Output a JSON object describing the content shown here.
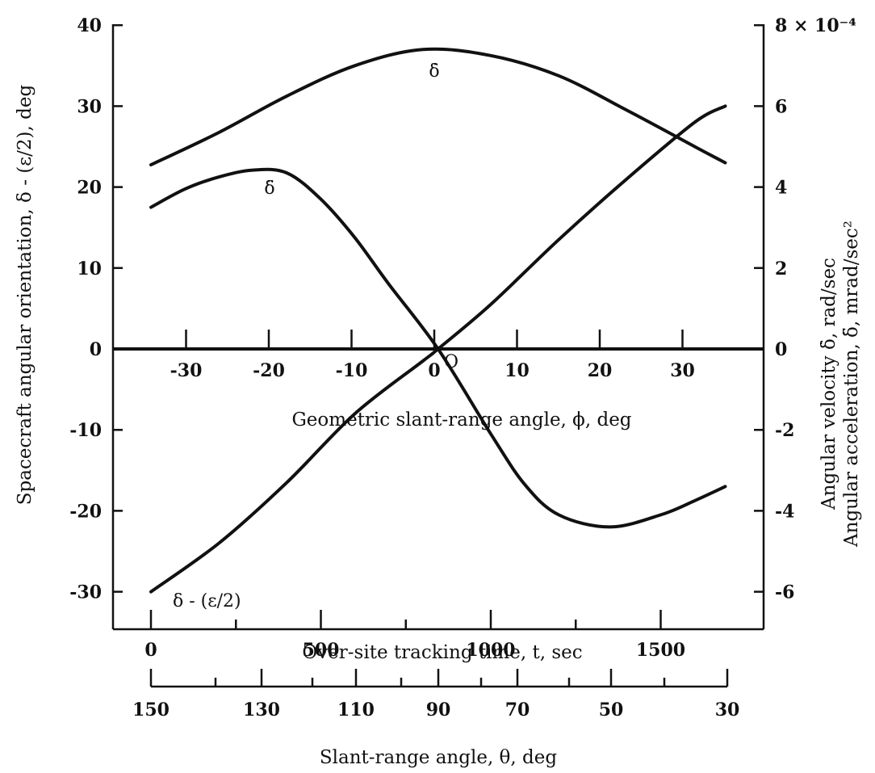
{
  "chart_data": {
    "type": "line",
    "left_axis": {
      "label": "Spacecraft angular orientation, δ - (ε/2), deg",
      "ticks": [
        -30,
        -20,
        -10,
        0,
        10,
        20,
        30,
        40
      ],
      "range": [
        -35,
        40
      ]
    },
    "right_axis": {
      "label_line1": "Angular velocity δ̇, rad/sec",
      "label_line2": "Angular acceleration, δ̈, mrad/sec²",
      "ticks": [
        "-6",
        "-4",
        "-2",
        "0",
        "2",
        "4",
        "6",
        "8 × 10⁻⁴"
      ],
      "tick_values": [
        -6,
        -4,
        -2,
        0,
        2,
        4,
        6,
        8
      ],
      "range": [
        -7,
        8
      ]
    },
    "phi_axis": {
      "label": "Geometric slant-range angle, ϕ, deg",
      "ticks": [
        "-30",
        "-20",
        "-10",
        "0",
        "10",
        "20",
        "30"
      ],
      "tick_values": [
        -30,
        -20,
        -10,
        0,
        10,
        20,
        30
      ]
    },
    "time_axis": {
      "label": "Over-site tracking time, t, sec",
      "ticks": [
        "0",
        "500",
        "1000",
        "1500"
      ],
      "tick_values": [
        0,
        500,
        1000,
        1500
      ]
    },
    "theta_axis": {
      "label": "Slant-range angle, θ, deg",
      "ticks": [
        "150",
        "130",
        "110",
        "90",
        "70",
        "50",
        "30"
      ]
    },
    "series": [
      {
        "name": "δ - (ε/2)",
        "axis": "left",
        "x_time": [
          0,
          200,
          400,
          600,
          800,
          845,
          1000,
          1200,
          1400,
          1600,
          1690
        ],
        "y": [
          -30,
          -24,
          -16.5,
          -8,
          -1.5,
          0,
          5.5,
          13.5,
          21,
          28,
          30
        ]
      },
      {
        "name": "δ̇",
        "axis": "right",
        "x_time": [
          0,
          200,
          400,
          600,
          800,
          1000,
          1200,
          1400,
          1600,
          1690
        ],
        "y": [
          4.55,
          5.35,
          6.25,
          7.0,
          7.4,
          7.25,
          6.75,
          5.9,
          5.0,
          4.6
        ]
      },
      {
        "name": "δ̈",
        "axis": "right",
        "x_time": [
          0,
          100,
          200,
          300,
          400,
          500,
          600,
          700,
          845,
          1000,
          1100,
          1200,
          1350,
          1500,
          1600,
          1690
        ],
        "y": [
          3.5,
          3.95,
          4.25,
          4.42,
          4.35,
          3.7,
          2.75,
          1.6,
          0,
          -2.1,
          -3.35,
          -4.1,
          -4.4,
          -4.1,
          -3.75,
          -3.4
        ]
      }
    ],
    "annotations": {
      "delta_dot": "δ̇",
      "delta_ddot": "δ̈",
      "delta_main": "δ - (ε/2)",
      "origin": "O"
    }
  }
}
